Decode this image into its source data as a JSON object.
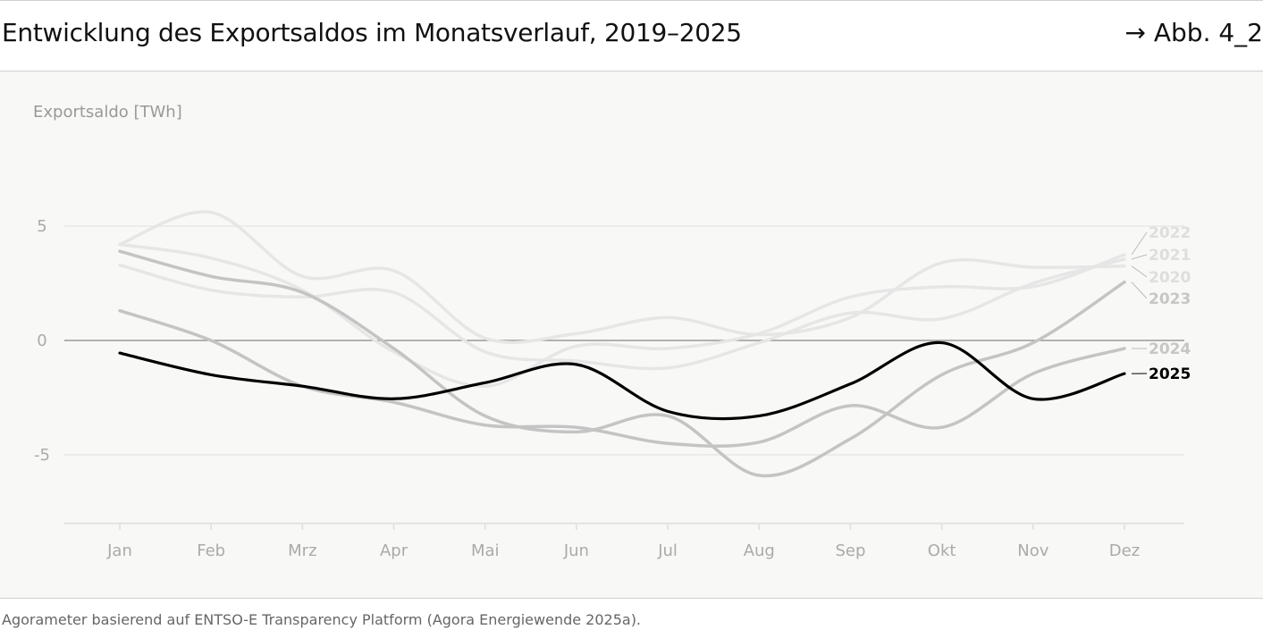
{
  "header": {
    "title": "Entwicklung des Exportsaldos im Monatsverlauf, 2019–2025",
    "reference": "→ Abb. 4_2"
  },
  "footer": {
    "source": "Agorameter basierend auf ENTSO-E Transparency Platform (Agora Energiewende 2025a)."
  },
  "chart_data": {
    "type": "line",
    "ylabel": "Exportsaldo [TWh]",
    "ylim": [
      -8,
      8
    ],
    "yticks": [
      5,
      0,
      -5
    ],
    "ytick_labels": [
      "5",
      "0",
      "-5"
    ],
    "categories": [
      "Jan",
      "Feb",
      "Mrz",
      "Apr",
      "Mai",
      "Jun",
      "Jul",
      "Aug",
      "Sep",
      "Okt",
      "Nov",
      "Dez"
    ],
    "grid": true,
    "legend": "direct labels at right line ends",
    "series": [
      {
        "name": "2022",
        "color": "#e6e6e6",
        "label_color": "#dedede",
        "values": [
          4.2,
          3.6,
          2.2,
          -0.5,
          -2.0,
          -0.25,
          -0.35,
          0.3,
          1.9,
          2.35,
          2.35,
          3.75
        ]
      },
      {
        "name": "2021",
        "color": "#e6e6e6",
        "label_color": "#dedede",
        "values": [
          3.3,
          2.2,
          1.9,
          2.1,
          -0.5,
          -0.9,
          -1.2,
          -0.1,
          1.2,
          0.95,
          2.5,
          3.55
        ]
      },
      {
        "name": "2020",
        "color": "#e6e6e6",
        "label_color": "#dedede",
        "values": [
          4.2,
          5.6,
          2.8,
          3.05,
          0.1,
          0.3,
          1.0,
          0.25,
          1.0,
          3.4,
          3.2,
          3.25
        ]
      },
      {
        "name": "2023",
        "color": "#c4c4c4",
        "label_color": "#c6c6c6",
        "values": [
          3.9,
          2.8,
          2.1,
          -0.35,
          -3.3,
          -4.0,
          -3.3,
          -5.9,
          -4.3,
          -1.5,
          -0.1,
          2.55
        ]
      },
      {
        "name": "2024",
        "color": "#c4c4c4",
        "label_color": "#c6c6c6",
        "values": [
          1.3,
          0.0,
          -2.0,
          -2.7,
          -3.7,
          -3.8,
          -4.5,
          -4.45,
          -2.85,
          -3.8,
          -1.45,
          -0.35
        ]
      },
      {
        "name": "2025",
        "color": "#000000",
        "label_color": "#000000",
        "values": [
          -0.55,
          -1.5,
          -2.0,
          -2.55,
          -1.85,
          -1.05,
          -3.1,
          -3.3,
          -1.9,
          -0.1,
          -2.55,
          -1.45
        ]
      }
    ]
  }
}
